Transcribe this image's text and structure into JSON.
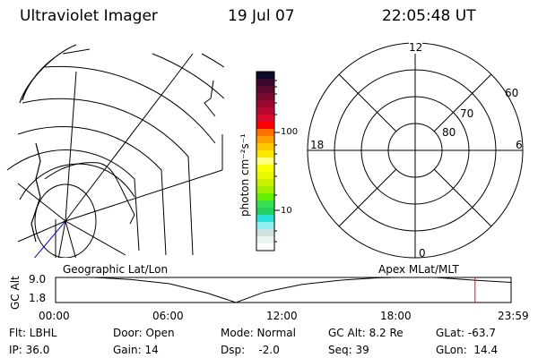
{
  "header": {
    "title": "Ultraviolet Imager",
    "date": "19 Jul 07",
    "time": "22:05:48 UT"
  },
  "map_panel": {
    "label": "Geographic Lat/Lon"
  },
  "colorbar": {
    "label": "photon cm⁻²s⁻¹",
    "tick_labels": [
      "100",
      "10"
    ],
    "colors": [
      "#0a0a2a",
      "#3a0a2a",
      "#5a0a30",
      "#7a0a30",
      "#990a30",
      "#b80a30",
      "#d80a30",
      "#ff0000",
      "#ff7000",
      "#ffa000",
      "#ffc800",
      "#ffe800",
      "#ffff80",
      "#f8ff00",
      "#e8f800",
      "#c8f000",
      "#a0f000",
      "#60f000",
      "#38e050",
      "#20d060",
      "#28e0d8",
      "#90f0f0",
      "#d0e0e0",
      "#e8f4ee",
      "#ffffff"
    ]
  },
  "polar_panel": {
    "label": "Apex MLat/MLT",
    "mlt_labels": {
      "top": "12",
      "bottom": "0",
      "left": "18",
      "right": "6"
    },
    "mlat_labels": [
      "60",
      "70",
      "80"
    ]
  },
  "chart_data": {
    "type": "line",
    "ylabel": "GC Alt",
    "y_tick_labels": [
      "9.0",
      "1.8"
    ],
    "ylim": [
      1.8,
      9.0
    ],
    "x_tick_labels": [
      "00:00",
      "06:00",
      "12:00",
      "18:00",
      "23:59"
    ],
    "x_hours": [
      0,
      1,
      2,
      4,
      6,
      8,
      9.5,
      11,
      13,
      15,
      17,
      18,
      20,
      22.1,
      24
    ],
    "values": [
      9.1,
      9.1,
      9.0,
      8.4,
      7.2,
      4.5,
      1.8,
      4.8,
      7.0,
      8.2,
      8.9,
      9.0,
      9.0,
      8.2,
      7.6
    ],
    "current_time_hours": 22.1,
    "current_marker_color": "#ff0000"
  },
  "status": {
    "filter": "Flt: LBHL",
    "ip": "IP: 36.0",
    "door": "Door: Open",
    "gain": "Gain: 14",
    "mode": "Mode: Normal",
    "dsp": "Dsp:    -2.0",
    "gc_alt": "GC Alt: 8.2 Re",
    "seq": "Seq: 39",
    "glat": "GLat: -63.7",
    "glon": "GLon:  14.4"
  }
}
